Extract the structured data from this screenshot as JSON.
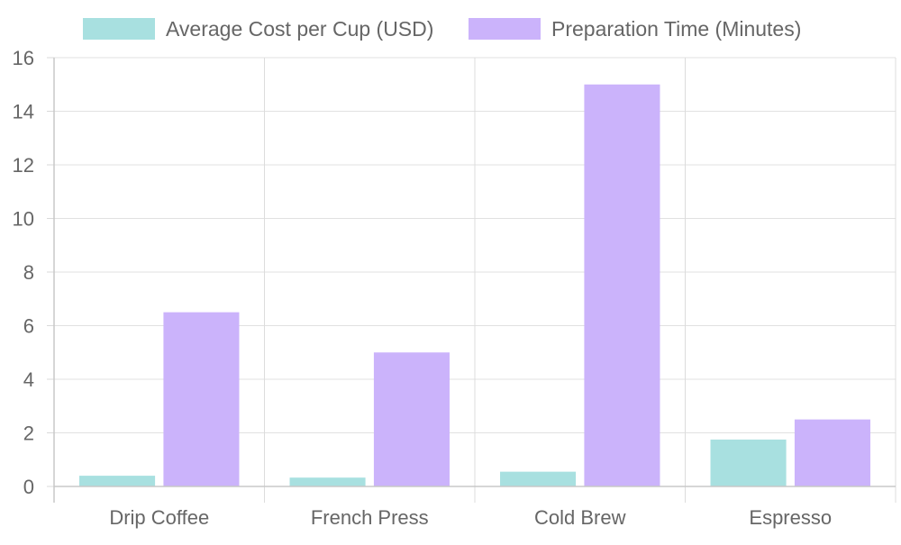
{
  "chart_data": {
    "type": "bar",
    "categories": [
      "Drip Coffee",
      "French Press",
      "Cold Brew",
      "Espresso"
    ],
    "series": [
      {
        "name": "Average Cost per Cup (USD)",
        "values": [
          0.4,
          0.33,
          0.55,
          1.75
        ],
        "color": "#a8e0e0"
      },
      {
        "name": "Preparation Time (Minutes)",
        "values": [
          6.5,
          5,
          15,
          2.5
        ],
        "color": "#cbb3fb"
      }
    ],
    "ylim": [
      0,
      16
    ],
    "yticks": [
      "0",
      "2",
      "4",
      "6",
      "8",
      "10",
      "12",
      "14",
      "16"
    ],
    "grid": true,
    "legend": "top"
  }
}
